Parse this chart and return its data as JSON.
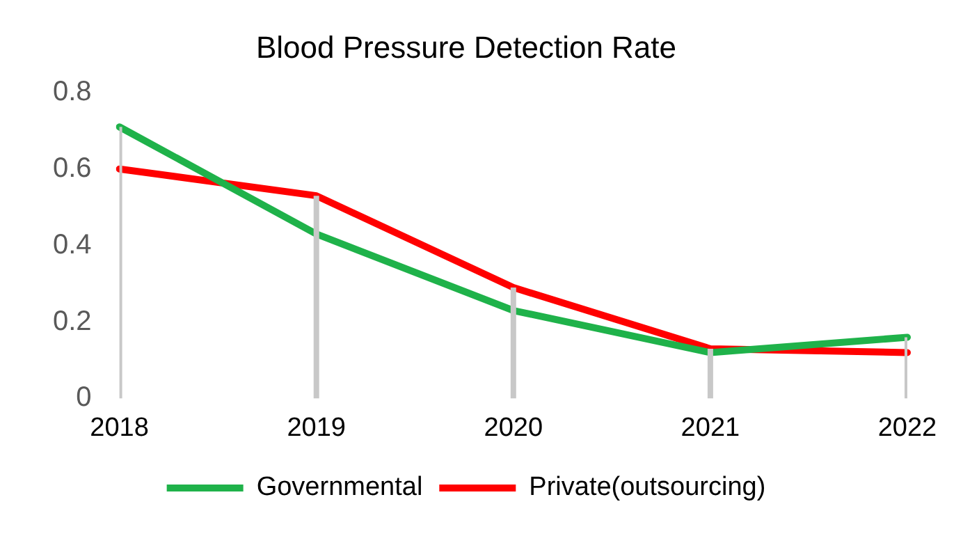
{
  "chart_data": {
    "type": "line",
    "title": "Blood Pressure Detection Rate",
    "categories": [
      "2018",
      "2019",
      "2020",
      "2021",
      "2022"
    ],
    "series": [
      {
        "type": "bar",
        "color": "#c8c8c8",
        "values": [
          0.71,
          0.53,
          0.29,
          0.13,
          0.16
        ]
      },
      {
        "name": "Governmental",
        "color": "#1fb24a",
        "values": [
          0.71,
          0.43,
          0.23,
          0.12,
          0.16
        ]
      },
      {
        "name": "Private(outsourcing)",
        "color": "#ff0000",
        "values": [
          0.6,
          0.53,
          0.29,
          0.13,
          0.12
        ]
      }
    ],
    "ylim": [
      0,
      0.8
    ],
    "yticks": [
      0,
      0.2,
      0.4,
      0.6,
      0.8
    ],
    "grid": false,
    "legend": "bottom",
    "marker": "none",
    "line_style": "solid"
  }
}
